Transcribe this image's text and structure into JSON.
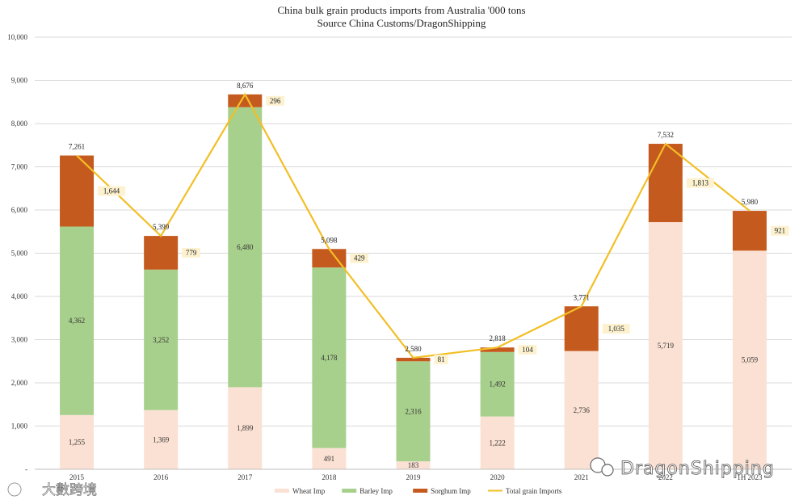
{
  "chart_data": {
    "type": "bar",
    "stacked": true,
    "title": "China bulk grain products imports from Australia '000 tons",
    "subtitle": "Source China Customs/DragonShipping",
    "categories": [
      "2015",
      "2016",
      "2017",
      "2018",
      "2019",
      "2020",
      "2021",
      "2022",
      "1H 2023"
    ],
    "series": [
      {
        "name": "Wheat Imp",
        "color": "#fbe1d3",
        "values": [
          1255,
          1369,
          1899,
          491,
          183,
          1222,
          2736,
          5719,
          5059
        ]
      },
      {
        "name": "Barley Imp",
        "color": "#a8d08d",
        "values": [
          4362,
          3252,
          6480,
          4178,
          2316,
          1492,
          0,
          0,
          0
        ]
      },
      {
        "name": "Sorghum Imp",
        "color": "#c55a1e",
        "values": [
          1644,
          779,
          296,
          429,
          81,
          104,
          1035,
          1813,
          921
        ]
      }
    ],
    "line_series": {
      "name": "Total grain  Imports",
      "color": "#f2bf26",
      "values": [
        7261,
        5399,
        8676,
        5098,
        2580,
        2818,
        3771,
        7532,
        5980
      ]
    },
    "ylim": [
      0,
      10000
    ],
    "yticks": [
      0,
      1000,
      2000,
      3000,
      4000,
      5000,
      6000,
      7000,
      8000,
      9000,
      10000
    ],
    "ytick_labels": [
      "-",
      "1,000",
      "2,000",
      "3,000",
      "4,000",
      "5,000",
      "6,000",
      "7,000",
      "8,000",
      "9,000",
      "10,000"
    ],
    "grid": true,
    "legend_position": "bottom"
  },
  "watermarks": {
    "main": "DragonShipping",
    "corner": "大數跨境"
  }
}
